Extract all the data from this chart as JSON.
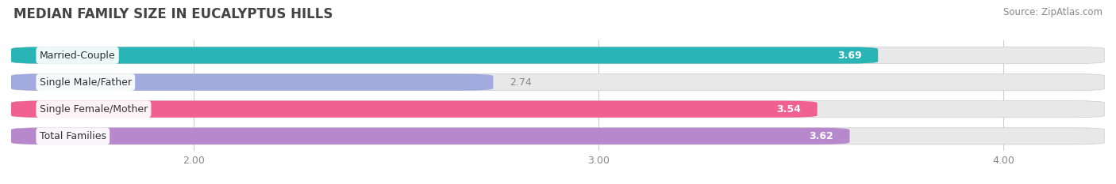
{
  "title": "MEDIAN FAMILY SIZE IN EUCALYPTUS HILLS",
  "source": "Source: ZipAtlas.com",
  "categories": [
    "Married-Couple",
    "Single Male/Father",
    "Single Female/Mother",
    "Total Families"
  ],
  "values": [
    3.69,
    2.74,
    3.54,
    3.62
  ],
  "bar_colors": [
    "#29b5b5",
    "#a0aadd",
    "#f06090",
    "#b888cc"
  ],
  "bar_bg_color": "#e8e8e8",
  "label_colors": [
    "white",
    "#555555",
    "white",
    "white"
  ],
  "xlim_left": 1.55,
  "xlim_right": 4.25,
  "xticks": [
    2.0,
    3.0,
    4.0
  ],
  "xtick_labels": [
    "2.00",
    "3.00",
    "4.00"
  ],
  "bar_height": 0.62,
  "figsize": [
    14.06,
    2.33
  ],
  "dpi": 100,
  "title_fontsize": 12,
  "source_fontsize": 8.5,
  "label_fontsize": 9,
  "value_fontsize": 9
}
